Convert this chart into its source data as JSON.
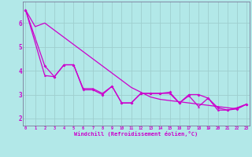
{
  "xlabel": "Windchill (Refroidissement éolien,°C)",
  "background_color": "#b2e8e8",
  "grid_color": "#9ecece",
  "line_color": "#cc00cc",
  "spine_color": "#7a7a9a",
  "x_ticks": [
    0,
    1,
    2,
    3,
    4,
    5,
    6,
    7,
    8,
    9,
    10,
    11,
    12,
    13,
    14,
    15,
    16,
    17,
    18,
    19,
    20,
    21,
    22,
    23
  ],
  "y_ticks": [
    2,
    3,
    4,
    5,
    6
  ],
  "ylim": [
    1.7,
    6.9
  ],
  "xlim": [
    -0.3,
    23.3
  ],
  "line1_x": [
    0,
    1,
    2,
    3,
    4,
    5,
    6,
    7,
    8,
    9,
    10,
    11,
    12,
    13,
    14,
    15,
    16,
    17,
    18,
    19,
    20,
    21,
    22,
    23
  ],
  "line1_y": [
    6.55,
    5.85,
    6.0,
    5.7,
    5.4,
    5.1,
    4.8,
    4.5,
    4.2,
    3.9,
    3.6,
    3.3,
    3.1,
    2.9,
    2.8,
    2.75,
    2.7,
    2.65,
    2.6,
    2.55,
    2.5,
    2.45,
    2.4,
    2.6
  ],
  "line2_x": [
    0,
    2,
    3,
    4,
    5,
    6,
    7,
    8,
    9,
    10,
    11,
    12,
    13,
    14,
    15,
    16,
    17,
    18,
    19,
    20,
    21,
    22,
    23
  ],
  "line2_y": [
    6.55,
    4.2,
    3.75,
    4.25,
    4.25,
    3.2,
    3.2,
    3.0,
    3.35,
    2.65,
    2.65,
    3.05,
    3.05,
    3.05,
    3.1,
    2.65,
    3.0,
    3.0,
    2.85,
    2.45,
    2.35,
    2.4,
    2.6
  ],
  "line3_x": [
    0,
    2,
    3,
    4,
    5,
    6,
    7,
    8,
    9,
    10,
    11,
    12,
    13,
    14,
    15,
    16,
    17,
    18,
    19,
    20,
    21,
    22,
    23
  ],
  "line3_y": [
    6.55,
    3.8,
    3.75,
    4.25,
    4.25,
    3.25,
    3.25,
    3.05,
    3.35,
    2.65,
    2.65,
    3.05,
    3.05,
    3.05,
    3.05,
    2.65,
    2.95,
    2.5,
    2.85,
    2.35,
    2.35,
    2.45,
    2.6
  ]
}
